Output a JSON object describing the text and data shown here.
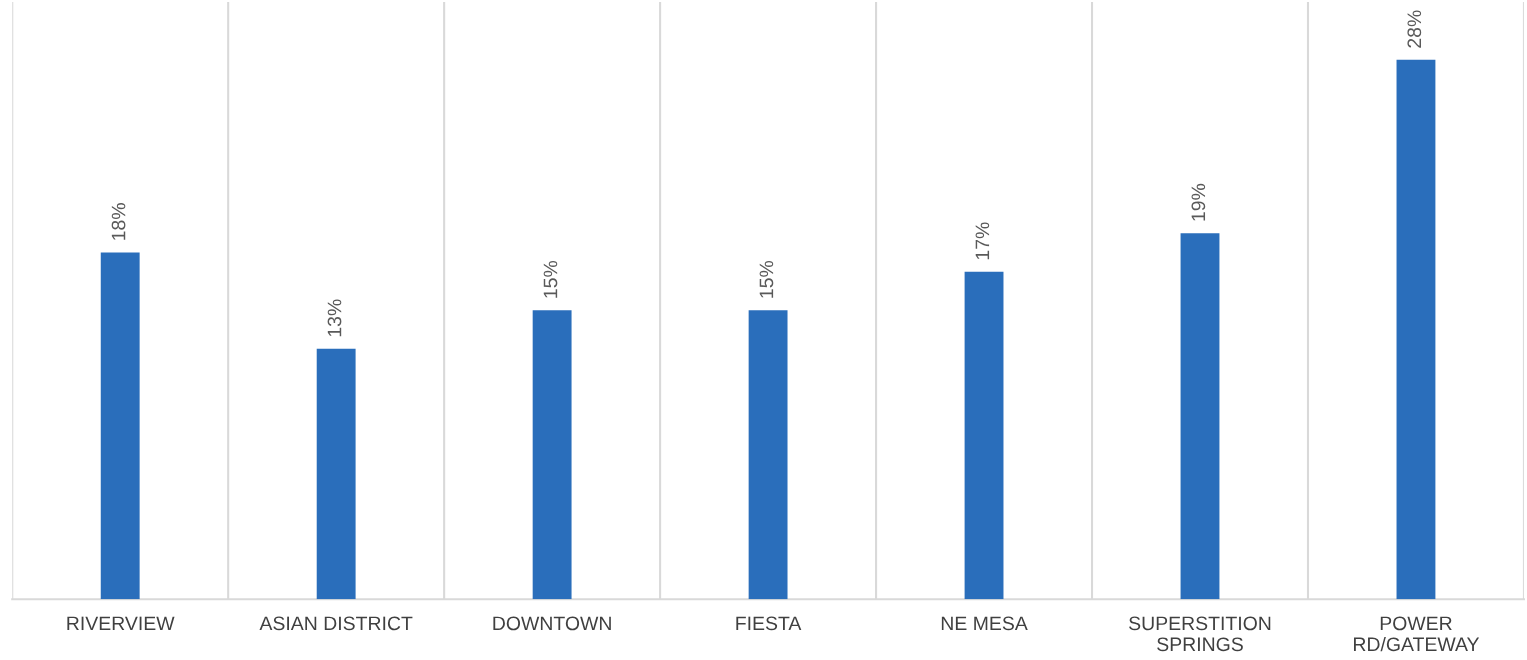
{
  "chart_data": {
    "type": "bar",
    "categories": [
      "RIVERVIEW",
      "ASIAN DISTRICT",
      "DOWNTOWN",
      "FIESTA",
      "NE MESA",
      "SUPERSTITION\nSPRINGS",
      "POWER\nRD/GATEWAY"
    ],
    "values": [
      18,
      13,
      15,
      15,
      17,
      19,
      28
    ],
    "value_labels": [
      "18%",
      "13%",
      "15%",
      "15%",
      "17%",
      "19%",
      "28%"
    ],
    "color": "#2a6ebb",
    "ylim": [
      0,
      31
    ],
    "tick_labels": "x",
    "grid": "x"
  }
}
